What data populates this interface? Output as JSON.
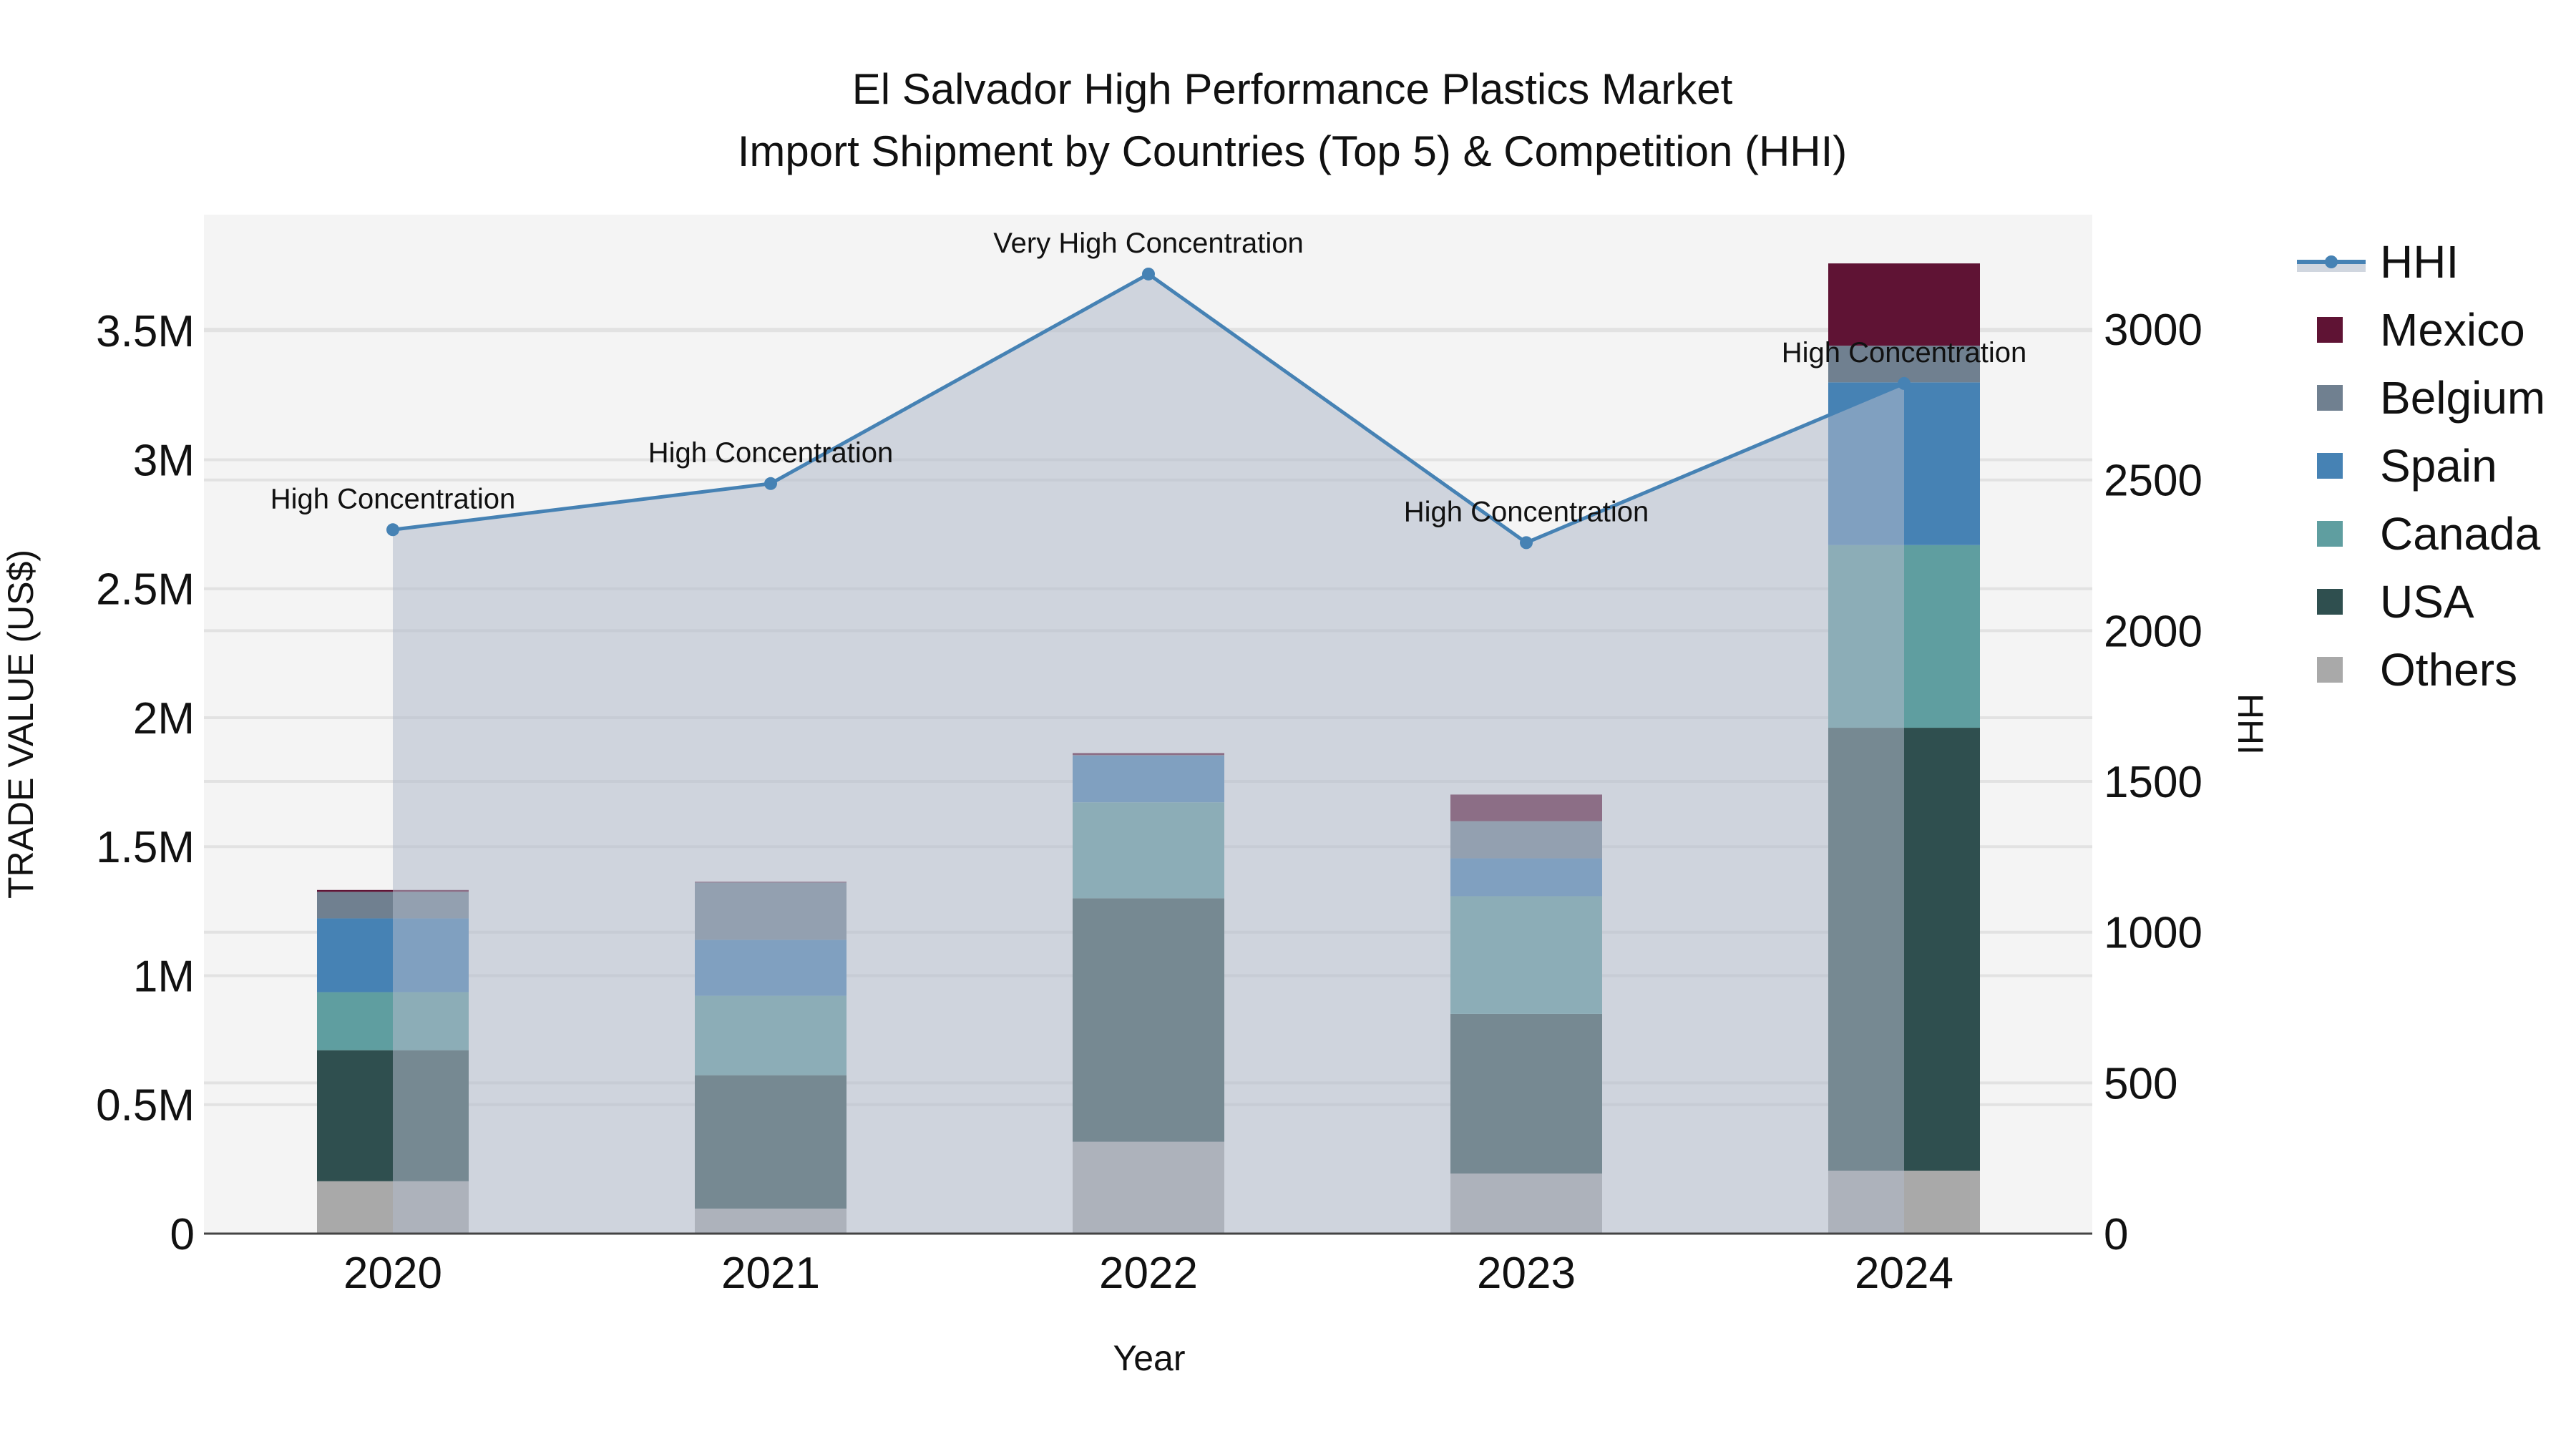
{
  "title": {
    "line1": "El Salvador High Performance Plastics Market",
    "line2": "Import Shipment by Countries (Top 5) & Competition (HHI)"
  },
  "axes": {
    "x_title": "Year",
    "y_left_title": "TRADE VALUE (US$)",
    "y_right_title": "HHI",
    "y_left_ticks": [
      "0",
      "0.5M",
      "1M",
      "1.5M",
      "2M",
      "2.5M",
      "3M",
      "3.5M"
    ],
    "y_right_ticks": [
      "0",
      "500",
      "1000",
      "1500",
      "2000",
      "2500",
      "3000"
    ]
  },
  "legend": {
    "items": [
      {
        "label": "HHI",
        "type": "line",
        "color": "#4682b4"
      },
      {
        "label": "Mexico",
        "type": "box",
        "color": "#5f1334"
      },
      {
        "label": "Belgium",
        "type": "box",
        "color": "#708090"
      },
      {
        "label": "Spain",
        "type": "box",
        "color": "#4682b4"
      },
      {
        "label": "Canada",
        "type": "box",
        "color": "#5f9ea0"
      },
      {
        "label": "USA",
        "type": "box",
        "color": "#2f4f4f"
      },
      {
        "label": "Others",
        "type": "box",
        "color": "#a9a9a9"
      }
    ]
  },
  "annotations": [
    {
      "year": "2020",
      "text": "High Concentration"
    },
    {
      "year": "2021",
      "text": "High Concentration"
    },
    {
      "year": "2022",
      "text": "Very High Concentration"
    },
    {
      "year": "2023",
      "text": "High Concentration"
    },
    {
      "year": "2024",
      "text": "High Concentration"
    }
  ],
  "colors": {
    "plot_bg": "#f4f4f4",
    "grid": "#e2e2e2",
    "hhi_line": "#4682b4",
    "hhi_fill": "rgba(176,186,202,0.55)"
  },
  "chart_data": {
    "type": "bar",
    "subtype": "stacked bar + line (secondary axis)",
    "title": "El Salvador High Performance Plastics Market — Import Shipment by Countries (Top 5) & Competition (HHI)",
    "xlabel": "Year",
    "ylabel": "TRADE VALUE (US$)",
    "y2label": "HHI",
    "categories": [
      "2020",
      "2021",
      "2022",
      "2023",
      "2024"
    ],
    "ylim": [
      0,
      3950000
    ],
    "y2lim": [
      0,
      3380
    ],
    "legend_position": "right",
    "grid": true,
    "series": [
      {
        "name": "Others",
        "color": "#a9a9a9",
        "values": [
          203000,
          97000,
          356000,
          233000,
          244000
        ]
      },
      {
        "name": "USA",
        "color": "#2f4f4f",
        "values": [
          508000,
          517000,
          944000,
          619000,
          1717000
        ]
      },
      {
        "name": "Canada",
        "color": "#5f9ea0",
        "values": [
          225000,
          308000,
          372000,
          456000,
          708000
        ]
      },
      {
        "name": "Spain",
        "color": "#4682b4",
        "values": [
          286000,
          217000,
          181000,
          147000,
          631000
        ]
      },
      {
        "name": "Belgium",
        "color": "#708090",
        "values": [
          103000,
          222000,
          2000,
          144000,
          142000
        ]
      },
      {
        "name": "Mexico",
        "color": "#5f1334",
        "values": [
          7000,
          3000,
          8000,
          103000,
          319000
        ]
      }
    ],
    "line_series": {
      "name": "HHI",
      "axis": "right",
      "color": "#4682b4",
      "values": [
        2335,
        2488,
        3183,
        2292,
        2820
      ],
      "labels": [
        "High Concentration",
        "High Concentration",
        "Very High Concentration",
        "High Concentration",
        "High Concentration"
      ]
    }
  }
}
